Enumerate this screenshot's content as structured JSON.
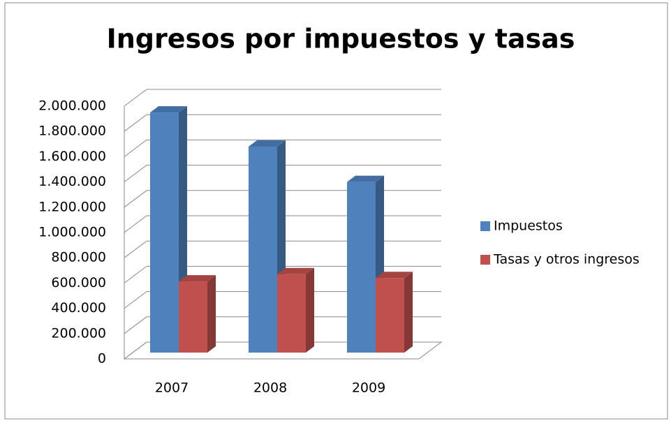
{
  "chart_data": {
    "type": "bar3d",
    "title": "Ingresos por impuestos y tasas",
    "categories": [
      "2007",
      "2008",
      "2009"
    ],
    "series": [
      {
        "name": "Impuestos",
        "color": "#4f81bd",
        "values": [
          1900000,
          1630000,
          1350000
        ]
      },
      {
        "name": "Tasas y otros ingresos",
        "color": "#c0504d",
        "values": [
          563000,
          620000,
          590000
        ]
      }
    ],
    "ylim": [
      0,
      2000000
    ],
    "yticks": [
      0,
      {
        "value": 200000,
        "label": "200.000"
      },
      {
        "value": 400000,
        "label": "400.000"
      },
      {
        "value": 600000,
        "label": "600.000"
      },
      {
        "value": 800000,
        "label": "800.000"
      },
      {
        "value": 1000000,
        "label": "1.000.000"
      },
      {
        "value": 1200000,
        "label": "1.200.000"
      },
      {
        "value": 1400000,
        "label": "1.400.000"
      },
      {
        "value": 1600000,
        "label": "1.600.000"
      },
      {
        "value": 1800000,
        "label": "1.800.000"
      },
      {
        "value": 2000000,
        "label": "2.000.000"
      }
    ],
    "grid": true,
    "legend": "right"
  }
}
